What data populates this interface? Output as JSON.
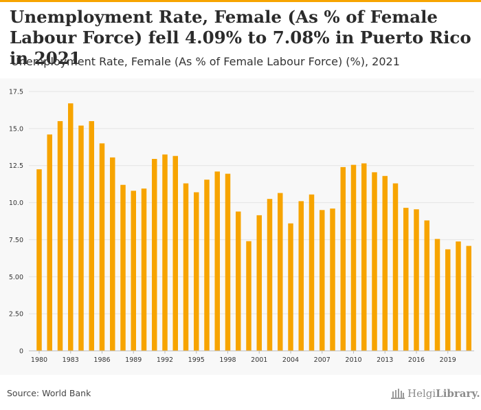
{
  "header": {
    "title": "Unemployment Rate, Female (As % of Female Labour Force) fell 4.09% to 7.08% in Puerto Rico in 2021",
    "subtitle": "Unemployment Rate, Female (As % of Female Labour Force) (%), 2021"
  },
  "footer": {
    "source": "Source: World Bank",
    "brand_light": "Helgi",
    "brand_bold": "Library."
  },
  "colors": {
    "bar": "#f7a400",
    "accent": "#f7a400",
    "grid": "#e3e3e3",
    "axis_text": "#333333"
  },
  "chart_data": {
    "type": "bar",
    "title": "Unemployment Rate, Female (As % of Female Labour Force) (%), 2021",
    "xlabel": "",
    "ylabel": "",
    "ylim": [
      0,
      17.5
    ],
    "yticks": [
      "0",
      "2.50",
      "5.00",
      "7.50",
      "10.0",
      "12.5",
      "15.0",
      "17.5"
    ],
    "xticks": [
      "1980",
      "1983",
      "1986",
      "1989",
      "1992",
      "1995",
      "1998",
      "2001",
      "2004",
      "2007",
      "2010",
      "2013",
      "2016",
      "2019"
    ],
    "grid": true,
    "categories": [
      1980,
      1981,
      1982,
      1983,
      1984,
      1985,
      1986,
      1987,
      1988,
      1989,
      1990,
      1991,
      1992,
      1993,
      1994,
      1995,
      1996,
      1997,
      1998,
      1999,
      2000,
      2001,
      2002,
      2003,
      2004,
      2005,
      2006,
      2007,
      2008,
      2009,
      2010,
      2011,
      2012,
      2013,
      2014,
      2015,
      2016,
      2017,
      2018,
      2019,
      2020,
      2021
    ],
    "values": [
      12.25,
      14.6,
      15.5,
      16.7,
      15.2,
      15.5,
      14.0,
      13.05,
      11.2,
      10.8,
      10.95,
      12.95,
      13.25,
      13.15,
      11.3,
      10.7,
      11.55,
      12.1,
      11.95,
      9.4,
      7.4,
      9.15,
      10.25,
      10.65,
      8.6,
      10.1,
      10.55,
      9.5,
      9.6,
      12.4,
      12.55,
      12.65,
      12.05,
      11.8,
      11.3,
      9.65,
      9.55,
      8.8,
      7.55,
      6.85,
      7.38,
      7.08
    ]
  }
}
